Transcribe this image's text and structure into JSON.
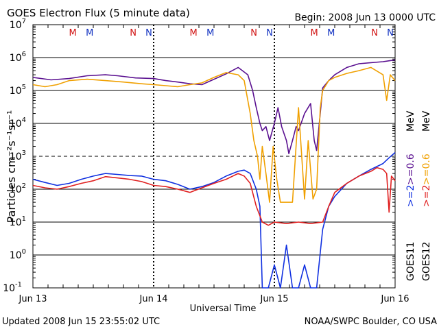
{
  "header": {
    "title": "GOES Electron Flux (5 minute data)",
    "begin": "Begin: 2008 Jun 13 0000 UTC"
  },
  "footer": {
    "updated": "Updated 2008 Jun 15 23:55:02 UTC",
    "source": "NOAA/SWPC Boulder, CO USA"
  },
  "side_labels": {
    "goes11": "GOES11",
    "goes12": "GOES12",
    "g11_a": ">=2",
    "g11_b": ">=0.6",
    "g12_a": ">=2",
    "g12_b": ">=0.6",
    "units": "MeV"
  },
  "colors": {
    "goes11_2mev": "#1030e0",
    "goes11_06mev": "#5a1090",
    "goes12_2mev": "#e02020",
    "goes12_06mev": "#f0a000",
    "marker_m": "#d01010",
    "marker_n_red": "#d01010",
    "marker_m_blue": "#1030c0",
    "marker_n_blue": "#1030c0"
  },
  "chart_data": {
    "type": "line",
    "title": "GOES Electron Flux (5 minute data)",
    "xlabel": "Universal Time",
    "ylabel": "Particles cm⁻²s⁻¹sr⁻¹",
    "yscale": "log",
    "ylim": [
      0.1,
      10000000
    ],
    "xlim_days": [
      0,
      3
    ],
    "x_ticks": [
      {
        "day": 0,
        "label": "Jun 13"
      },
      {
        "day": 1,
        "label": "Jun 14"
      },
      {
        "day": 2,
        "label": "Jun 15"
      },
      {
        "day": 3,
        "label": "Jun 16"
      }
    ],
    "y_ticks": [
      {
        "exp": -1,
        "label": "10",
        "sup": "-1"
      },
      {
        "exp": 0,
        "label": "10",
        "sup": "0"
      },
      {
        "exp": 1,
        "label": "10",
        "sup": "1"
      },
      {
        "exp": 2,
        "label": "10",
        "sup": "2"
      },
      {
        "exp": 3,
        "label": "10",
        "sup": "3"
      },
      {
        "exp": 4,
        "label": "10",
        "sup": "4"
      },
      {
        "exp": 5,
        "label": "10",
        "sup": "5"
      },
      {
        "exp": 6,
        "label": "10",
        "sup": "6"
      },
      {
        "exp": 7,
        "label": "10",
        "sup": "7"
      }
    ],
    "dashed_threshold": 1000,
    "markers": [
      {
        "day": 0.33,
        "label": "M",
        "which": "red"
      },
      {
        "day": 0.47,
        "label": "M",
        "which": "blue"
      },
      {
        "day": 0.83,
        "label": "N",
        "which": "red"
      },
      {
        "day": 0.96,
        "label": "N",
        "which": "blue"
      },
      {
        "day": 1.33,
        "label": "M",
        "which": "red"
      },
      {
        "day": 1.47,
        "label": "M",
        "which": "blue"
      },
      {
        "day": 1.83,
        "label": "N",
        "which": "red"
      },
      {
        "day": 1.96,
        "label": "N",
        "which": "blue"
      },
      {
        "day": 2.33,
        "label": "M",
        "which": "red"
      },
      {
        "day": 2.47,
        "label": "M",
        "which": "blue"
      },
      {
        "day": 2.83,
        "label": "N",
        "which": "red"
      },
      {
        "day": 2.96,
        "label": "N",
        "which": "blue"
      }
    ],
    "series": [
      {
        "name": "GOES11 >=0.6 MeV",
        "color_key": "goes11_06mev",
        "x": [
          0,
          0.15,
          0.3,
          0.45,
          0.6,
          0.7,
          0.85,
          1.0,
          1.1,
          1.2,
          1.3,
          1.4,
          1.5,
          1.6,
          1.7,
          1.78,
          1.82,
          1.85,
          1.88,
          1.9,
          1.93,
          1.96,
          2.0,
          2.03,
          2.06,
          2.1,
          2.12,
          2.15,
          2.18,
          2.2,
          2.25,
          2.3,
          2.33,
          2.35,
          2.38,
          2.4,
          2.45,
          2.5,
          2.6,
          2.7,
          2.8,
          2.9,
          2.95,
          3.0
        ],
        "y": [
          250000,
          210000,
          230000,
          280000,
          300000,
          280000,
          240000,
          230000,
          200000,
          180000,
          160000,
          150000,
          220000,
          320000,
          500000,
          300000,
          100000,
          30000,
          10000,
          6000,
          8000,
          3000,
          10000,
          30000,
          8000,
          3000,
          1200,
          3000,
          8000,
          6000,
          20000,
          40000,
          3000,
          1500,
          20000,
          120000,
          200000,
          300000,
          500000,
          650000,
          700000,
          750000,
          800000,
          850000
        ]
      },
      {
        "name": "GOES12 >=0.6 MeV",
        "color_key": "goes12_06mev",
        "x": [
          0,
          0.1,
          0.2,
          0.3,
          0.45,
          0.6,
          0.75,
          0.9,
          1.0,
          1.1,
          1.2,
          1.3,
          1.4,
          1.5,
          1.6,
          1.7,
          1.75,
          1.8,
          1.83,
          1.86,
          1.88,
          1.9,
          1.93,
          1.96,
          1.99,
          2.02,
          2.05,
          2.08,
          2.12,
          2.15,
          2.2,
          2.25,
          2.28,
          2.32,
          2.35,
          2.38,
          2.4,
          2.45,
          2.5,
          2.6,
          2.7,
          2.8,
          2.9,
          2.93,
          2.96,
          3.0
        ],
        "y": [
          150000,
          130000,
          150000,
          200000,
          220000,
          200000,
          180000,
          160000,
          150000,
          140000,
          130000,
          150000,
          170000,
          250000,
          350000,
          300000,
          200000,
          20000,
          3000,
          1000,
          200,
          2000,
          300,
          40,
          2000,
          200,
          40,
          40,
          40,
          40,
          30000,
          50,
          3000,
          50,
          100,
          30000,
          100000,
          200000,
          250000,
          330000,
          400000,
          500000,
          300000,
          50000,
          300000,
          200000
        ]
      },
      {
        "name": "GOES11 >=2 MeV",
        "color_key": "goes11_2mev",
        "x": [
          0,
          0.1,
          0.2,
          0.3,
          0.4,
          0.5,
          0.6,
          0.7,
          0.8,
          0.9,
          1.0,
          1.1,
          1.2,
          1.3,
          1.4,
          1.5,
          1.6,
          1.7,
          1.75,
          1.8,
          1.85,
          1.88,
          1.9,
          1.95,
          2.0,
          2.05,
          2.1,
          2.15,
          2.2,
          2.25,
          2.3,
          2.35,
          2.4,
          2.45,
          2.5,
          2.6,
          2.7,
          2.8,
          2.9,
          2.95,
          3.0
        ],
        "y": [
          200,
          160,
          130,
          150,
          200,
          250,
          300,
          280,
          260,
          250,
          200,
          180,
          140,
          100,
          120,
          160,
          250,
          350,
          380,
          300,
          100,
          30,
          0.1,
          0.1,
          0.5,
          0.1,
          2,
          0.1,
          0.1,
          0.5,
          0.1,
          0.1,
          6,
          30,
          60,
          150,
          250,
          400,
          600,
          900,
          1300
        ]
      },
      {
        "name": "GOES12 >=2 MeV",
        "color_key": "goes12_2mev",
        "x": [
          0,
          0.1,
          0.2,
          0.3,
          0.4,
          0.5,
          0.6,
          0.7,
          0.8,
          0.9,
          1.0,
          1.1,
          1.2,
          1.3,
          1.4,
          1.5,
          1.6,
          1.7,
          1.75,
          1.8,
          1.85,
          1.9,
          1.95,
          2.0,
          2.1,
          2.2,
          2.3,
          2.4,
          2.45,
          2.5,
          2.6,
          2.7,
          2.8,
          2.85,
          2.9,
          2.93,
          2.95,
          2.97,
          3.0
        ],
        "y": [
          130,
          110,
          100,
          120,
          150,
          180,
          240,
          220,
          200,
          170,
          130,
          120,
          100,
          80,
          110,
          150,
          200,
          300,
          250,
          150,
          30,
          10,
          8,
          10,
          9,
          10,
          9,
          10,
          30,
          80,
          150,
          250,
          350,
          450,
          400,
          300,
          20,
          250,
          180
        ]
      }
    ]
  }
}
